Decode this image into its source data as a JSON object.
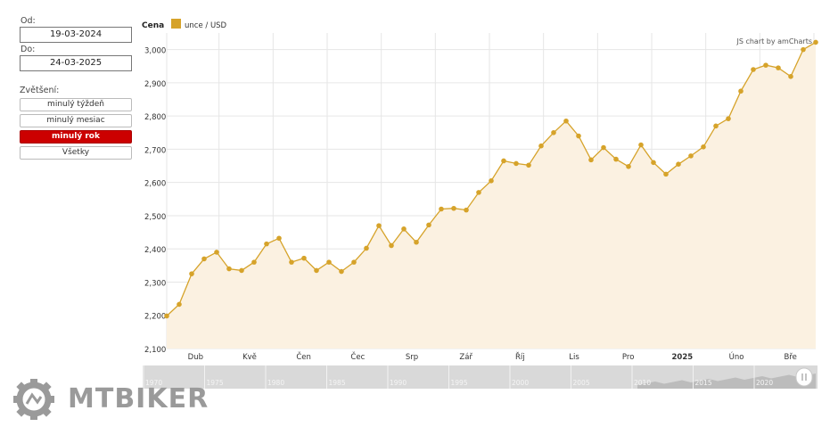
{
  "sidebar": {
    "from_label": "Od:",
    "from_value": "19-03-2024",
    "to_label": "Do:",
    "to_value": "24-03-2025",
    "zoom_label": "Zvětšení:",
    "zoom_buttons": [
      "minulý týždeň",
      "minulý mesiac",
      "minulý rok",
      "Všetky"
    ],
    "active_zoom": 2
  },
  "chart_data": {
    "type": "area",
    "title": "Cena",
    "credit": "JS chart by amCharts",
    "series": [
      {
        "name": "unce / USD",
        "color": "#d6a32a",
        "fill": "#fbf1e1",
        "values": [
          2198,
          2233,
          2325,
          2370,
          2390,
          2340,
          2335,
          2360,
          2415,
          2432,
          2360,
          2372,
          2335,
          2360,
          2332,
          2360,
          2402,
          2470,
          2410,
          2460,
          2420,
          2472,
          2520,
          2522,
          2517,
          2570,
          2605,
          2665,
          2657,
          2652,
          2710,
          2750,
          2785,
          2740,
          2668,
          2705,
          2670,
          2648,
          2713,
          2660,
          2625,
          2655,
          2680,
          2707,
          2770,
          2792,
          2875,
          2940,
          2953,
          2945,
          2919,
          3000,
          3022
        ]
      }
    ],
    "ylim": [
      2100,
      3050
    ],
    "yticks": [
      "2,100",
      "2,200",
      "2,300",
      "2,400",
      "2,500",
      "2,600",
      "2,700",
      "2,800",
      "2,900",
      "3,000"
    ],
    "xtick_labels": [
      "Dub",
      "Kvě",
      "Čen",
      "Čec",
      "Srp",
      "Zář",
      "Říj",
      "Lis",
      "Pro",
      "2025",
      "Úno",
      "Bře"
    ],
    "bold_xtick": "2025",
    "grid": true,
    "navigator": {
      "labels": [
        "1970",
        "1975",
        "1980",
        "1985",
        "1990",
        "1995",
        "2000",
        "2005",
        "2010",
        "2015",
        "2020"
      ]
    }
  },
  "brand": {
    "text": "MTBIKER"
  }
}
